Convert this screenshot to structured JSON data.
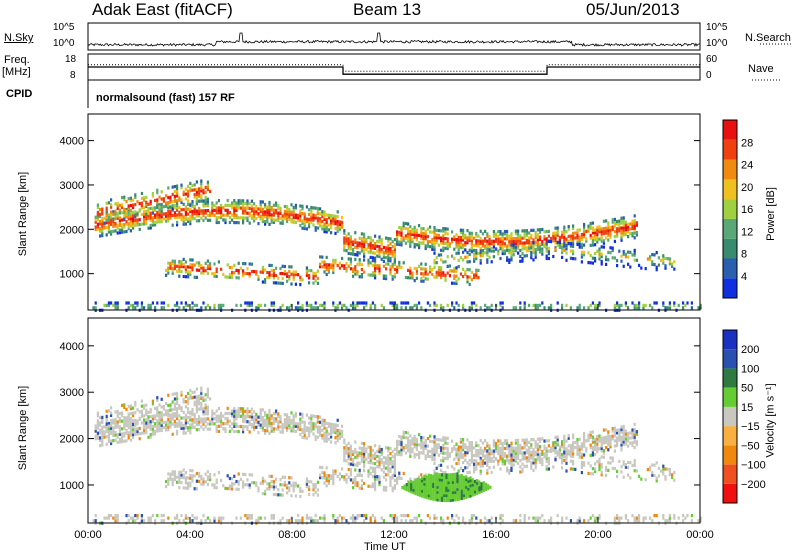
{
  "header": {
    "radar": "Adak East (fitACF)",
    "beam": "Beam 13",
    "date": "05/Jun/2013"
  },
  "top_panels": {
    "nsky_label": "N.Sky",
    "nsky_ticks": [
      "10^5",
      "10^0"
    ],
    "nsearch_label": "N.Search",
    "nsearch_ticks": [
      "10^5",
      "10^0"
    ],
    "freq_label_1": "Freq.",
    "freq_label_2": "[MHz]",
    "freq_ticks": [
      "18",
      "8"
    ],
    "nave_label": "Nave",
    "nave_ticks": [
      "60",
      "0"
    ],
    "cpid_label": "CPID",
    "cpid_text": "normalsound (fast) 157 RF"
  },
  "colors": {
    "power": [
      "#1030e0",
      "#2a5fb0",
      "#3a8a70",
      "#5aa878",
      "#9fd040",
      "#f0c020",
      "#f08a10",
      "#f04010",
      "#e81010"
    ],
    "velocity": [
      "#1a30c0",
      "#2a50b0",
      "#2e7a40",
      "#66cc33",
      "#c8c8c0",
      "#f8b040",
      "#f08810",
      "#f05020",
      "#f01010"
    ],
    "freq_line": "#000000"
  },
  "chart_data": [
    {
      "type": "heatmap",
      "panel": "power",
      "ylabel": "Slant Range [km]",
      "y_ticks": [
        "4000",
        "3000",
        "2000",
        "1000"
      ],
      "y_tick_values": [
        4000,
        3000,
        2000,
        1000
      ],
      "ylim": [
        180,
        4600
      ],
      "xlim": [
        0,
        24
      ],
      "colorbar_label": "Power [dB]",
      "colorbar_ticks": [
        "28",
        "24",
        "20",
        "16",
        "12",
        "8",
        "4"
      ],
      "colorbar_range": [
        0,
        32
      ],
      "bands": [
        {
          "name": "main",
          "start_h": 0.1,
          "end_h": 21.5,
          "range_km": [
            1700,
            2600
          ],
          "peak_db": 28
        },
        {
          "name": "lower",
          "start_h": 3.0,
          "end_h": 15.5,
          "range_km": [
            700,
            1500
          ],
          "peak_db": 26
        },
        {
          "name": "upper-left",
          "start_h": 0.5,
          "end_h": 5.0,
          "range_km": [
            2200,
            3200
          ],
          "peak_db": 12
        }
      ]
    },
    {
      "type": "heatmap",
      "panel": "velocity",
      "ylabel": "Slant Range [km]",
      "y_ticks": [
        "4000",
        "3000",
        "2000",
        "1000"
      ],
      "y_tick_values": [
        4000,
        3000,
        2000,
        1000
      ],
      "ylim": [
        180,
        4600
      ],
      "xlim": [
        0,
        24
      ],
      "colorbar_label": "Velocity [m s⁻¹]",
      "colorbar_ticks": [
        "200",
        "100",
        "50",
        "15",
        "−15",
        "−50",
        "−100",
        "−200"
      ],
      "dominant_velocity_ms": 0,
      "positive_patch": {
        "start_h": 12.2,
        "end_h": 15.8,
        "range_km": [
          700,
          1300
        ],
        "velocity_ms": 60
      }
    }
  ],
  "nave_series": {
    "x_h": [
      0,
      10,
      10,
      18,
      18,
      24
    ],
    "y": [
      40,
      40,
      20,
      20,
      40,
      40
    ]
  },
  "freq_series": {
    "x_h": [
      0,
      10,
      10,
      18,
      18,
      24
    ],
    "y_mhz": [
      13,
      13,
      10,
      10,
      13,
      13
    ]
  },
  "x_axis": {
    "label": "Time UT",
    "ticks": [
      "00:00",
      "04:00",
      "08:00",
      "12:00",
      "16:00",
      "20:00",
      "00:00"
    ],
    "tick_hours": [
      0,
      4,
      8,
      12,
      16,
      20,
      24
    ]
  }
}
